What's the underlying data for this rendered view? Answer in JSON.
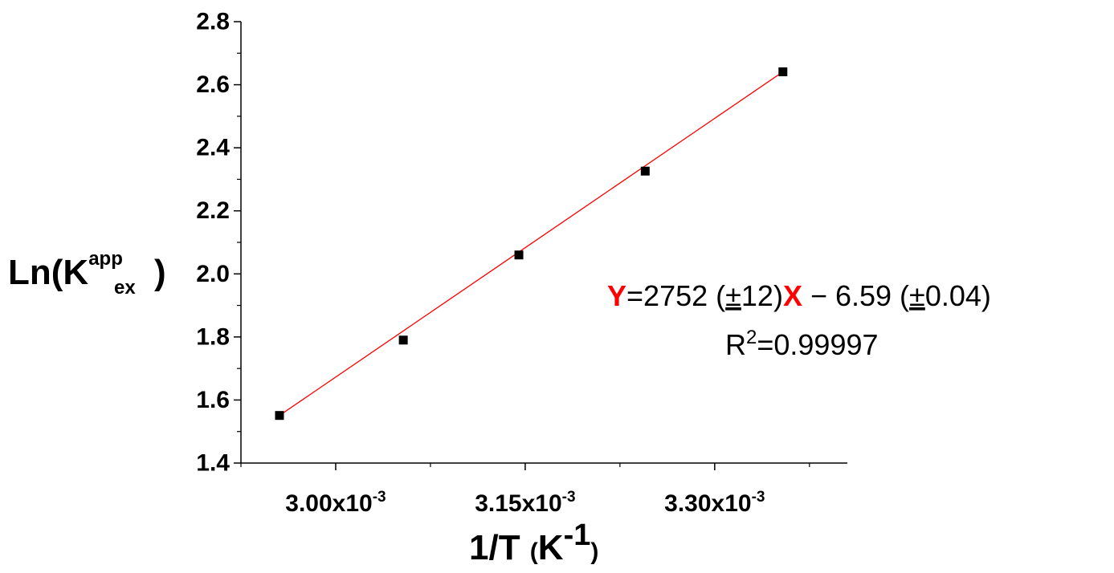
{
  "chart_data": {
    "type": "scatter",
    "x_scale": 0.001,
    "xlim": [
      2.925,
      3.405
    ],
    "ylim": [
      1.4,
      2.8
    ],
    "x_ticks": [
      {
        "value": 3.0,
        "mantissa": "3.00x10",
        "exponent": "-3"
      },
      {
        "value": 3.15,
        "mantissa": "3.15x10",
        "exponent": "-3"
      },
      {
        "value": 3.3,
        "mantissa": "3.30x10",
        "exponent": "-3"
      }
    ],
    "x_minor_ticks": [
      2.925,
      3.075,
      3.225,
      3.375
    ],
    "y_ticks": [
      {
        "value": 1.4,
        "label": "1.4"
      },
      {
        "value": 1.6,
        "label": "1.6"
      },
      {
        "value": 1.8,
        "label": "1.8"
      },
      {
        "value": 2.0,
        "label": "2.0"
      },
      {
        "value": 2.2,
        "label": "2.2"
      },
      {
        "value": 2.4,
        "label": "2.4"
      },
      {
        "value": 2.6,
        "label": "2.6"
      },
      {
        "value": 2.8,
        "label": "2.8"
      }
    ],
    "y_minor_ticks": [
      1.5,
      1.7,
      1.9,
      2.1,
      2.3,
      2.5,
      2.7
    ],
    "x": [
      2.9555,
      3.0535,
      3.145,
      3.245,
      3.354
    ],
    "y": [
      1.551,
      1.79,
      2.06,
      2.326,
      2.641
    ],
    "marker_color": "#000000",
    "fit": {
      "x_range": [
        2.9555,
        3.354
      ],
      "y_range": [
        1.551,
        2.641
      ],
      "color": "#ff0000"
    },
    "xlabel": {
      "main": "1/T ",
      "unit_open": "(",
      "unit_base": "K",
      "unit_sup": "-1",
      "unit_close": ")"
    },
    "ylabel": {
      "prefix": "Ln(K",
      "sup": "app",
      "sub": "ex",
      "suffix": ")"
    },
    "annotation": {
      "y_var": "Y",
      "part1": "=2752 (",
      "pm1": "±",
      "part2": "12)",
      "x_var": "X",
      "part3": " − 6.59 (",
      "pm2": "±",
      "part4": "0.04)",
      "r_base": "R",
      "r_sup": "2",
      "r_value": "=0.99997",
      "var_color": "#ff0000"
    },
    "grid": false,
    "legend": "none"
  }
}
